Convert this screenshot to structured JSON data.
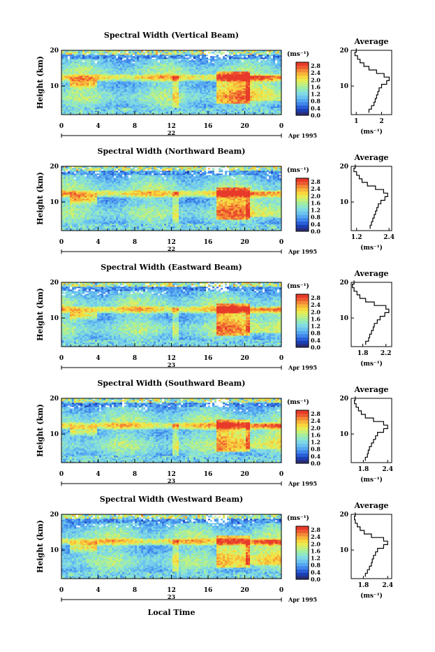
{
  "figure": {
    "bottom_label": "Local Time",
    "date_text": "Apr 1995",
    "day_labels": [
      "22",
      "22",
      "23",
      "23",
      "23"
    ]
  },
  "colors": {
    "scale": [
      "#2a2e7a",
      "#1b3fb0",
      "#2a5fd8",
      "#3f86ea",
      "#55a8f0",
      "#6cc4ee",
      "#7fd8e6",
      "#8fe6c8",
      "#a6ee9e",
      "#c6f07a",
      "#e6ec56",
      "#f8d83e",
      "#f8b43a",
      "#f38a36",
      "#ee5a30",
      "#e73a2a"
    ]
  },
  "chart_data": [
    {
      "type": "heatmap",
      "title": "Spectral Width (Vertical Beam)",
      "ylabel": "Height (km)",
      "x_ticks": [
        "0",
        "4",
        "8",
        "12",
        "16",
        "20",
        "0"
      ],
      "y_ticks": [
        "20",
        "10"
      ],
      "xlim": [
        0,
        24
      ],
      "ylim": [
        2,
        20
      ],
      "colorbar": {
        "unit": "(ms⁻¹)",
        "ticks": [
          "2.8",
          "2.4",
          "2.0",
          "1.6",
          "1.2",
          "0.8",
          "0.4",
          "0.0"
        ],
        "range": [
          0,
          3.0
        ]
      },
      "average": {
        "title": "Average",
        "xlabel": "(ms⁻¹)",
        "x_ticks": [
          "1",
          "2"
        ],
        "xlim": [
          0.8,
          2.4
        ],
        "y_ticks": [
          "20",
          "10"
        ],
        "heights": [
          3,
          4,
          5,
          6,
          7,
          8,
          9,
          10,
          11,
          12,
          13,
          14,
          15,
          16,
          17,
          18,
          19,
          20
        ],
        "values": [
          1.5,
          1.6,
          1.7,
          1.75,
          1.8,
          1.85,
          1.9,
          2.0,
          2.2,
          2.3,
          2.1,
          1.8,
          1.5,
          1.3,
          1.15,
          1.05,
          0.95,
          1.0
        ]
      }
    },
    {
      "type": "heatmap",
      "title": "Spectral Width (Northward Beam)",
      "ylabel": "Height (km)",
      "x_ticks": [
        "0",
        "4",
        "8",
        "12",
        "16",
        "20",
        "0"
      ],
      "y_ticks": [
        "20",
        "10"
      ],
      "xlim": [
        0,
        24
      ],
      "ylim": [
        2,
        20
      ],
      "colorbar": {
        "unit": "(ms⁻¹)",
        "ticks": [
          "2.8",
          "2.4",
          "2.0",
          "1.6",
          "1.2",
          "0.8",
          "0.4",
          "0.0"
        ],
        "range": [
          0,
          3.0
        ]
      },
      "average": {
        "title": "Average",
        "xlabel": "(ms⁻¹)",
        "x_ticks": [
          "1.2",
          "2.4"
        ],
        "xlim": [
          1.0,
          2.5
        ],
        "y_ticks": [
          "20",
          "10"
        ],
        "heights": [
          3,
          4,
          5,
          6,
          7,
          8,
          9,
          10,
          11,
          12,
          13,
          14,
          15,
          16,
          17,
          18,
          19,
          20
        ],
        "values": [
          1.7,
          1.75,
          1.8,
          1.85,
          1.9,
          1.95,
          2.0,
          2.1,
          2.25,
          2.35,
          2.2,
          1.9,
          1.6,
          1.4,
          1.3,
          1.2,
          1.1,
          1.15
        ]
      }
    },
    {
      "type": "heatmap",
      "title": "Spectral Width (Eastward Beam)",
      "ylabel": "Height (km)",
      "x_ticks": [
        "0",
        "4",
        "8",
        "12",
        "16",
        "20",
        "0"
      ],
      "y_ticks": [
        "20",
        "10"
      ],
      "xlim": [
        0,
        24
      ],
      "ylim": [
        2,
        20
      ],
      "colorbar": {
        "unit": "(ms⁻¹)",
        "ticks": [
          "2.8",
          "2.4",
          "2.0",
          "1.6",
          "1.2",
          "0.8",
          "0.4",
          "0.0"
        ],
        "range": [
          0,
          3.0
        ]
      },
      "average": {
        "title": "Average",
        "xlabel": "(ms⁻¹)",
        "x_ticks": [
          "1.8",
          "2.2"
        ],
        "xlim": [
          1.6,
          2.3
        ],
        "y_ticks": [
          "20",
          "10"
        ],
        "heights": [
          3,
          4,
          5,
          6,
          7,
          8,
          9,
          10,
          11,
          12,
          13,
          14,
          15,
          16,
          17,
          18,
          19,
          20
        ],
        "values": [
          1.85,
          1.9,
          1.92,
          1.95,
          1.98,
          2.0,
          2.05,
          2.1,
          2.18,
          2.25,
          2.2,
          2.0,
          1.85,
          1.75,
          1.7,
          1.65,
          1.62,
          1.65
        ]
      }
    },
    {
      "type": "heatmap",
      "title": "Spectral Width (Southward Beam)",
      "ylabel": "Height (km)",
      "x_ticks": [
        "0",
        "4",
        "8",
        "12",
        "16",
        "20",
        "0"
      ],
      "y_ticks": [
        "20",
        "10"
      ],
      "xlim": [
        0,
        24
      ],
      "ylim": [
        2,
        20
      ],
      "colorbar": {
        "unit": "(ms⁻¹)",
        "ticks": [
          "2.8",
          "2.4",
          "2.0",
          "1.6",
          "1.2",
          "0.8",
          "0.4",
          "0.0"
        ],
        "range": [
          0,
          3.0
        ]
      },
      "average": {
        "title": "Average",
        "xlabel": "(ms⁻¹)",
        "x_ticks": [
          "1.8",
          "2.4"
        ],
        "xlim": [
          1.5,
          2.5
        ],
        "y_ticks": [
          "20",
          "10"
        ],
        "heights": [
          3,
          4,
          5,
          6,
          7,
          8,
          9,
          10,
          11,
          12,
          13,
          14,
          15,
          16,
          17,
          18,
          19,
          20
        ],
        "values": [
          1.85,
          1.9,
          1.92,
          1.95,
          2.0,
          2.05,
          2.1,
          2.15,
          2.3,
          2.4,
          2.3,
          2.05,
          1.85,
          1.75,
          1.68,
          1.62,
          1.58,
          1.6
        ]
      }
    },
    {
      "type": "heatmap",
      "title": "Spectral Width (Westward Beam)",
      "ylabel": "Height (km)",
      "x_ticks": [
        "0",
        "4",
        "8",
        "12",
        "16",
        "20",
        "0"
      ],
      "y_ticks": [
        "20",
        "10"
      ],
      "xlim": [
        0,
        24
      ],
      "ylim": [
        2,
        20
      ],
      "colorbar": {
        "unit": "(ms⁻¹)",
        "ticks": [
          "2.8",
          "2.4",
          "2.0",
          "1.6",
          "1.2",
          "0.8",
          "0.4",
          "0.0"
        ],
        "range": [
          0,
          3.0
        ]
      },
      "average": {
        "title": "Average",
        "xlabel": "(ms⁻¹)",
        "x_ticks": [
          "1.8",
          "2.4"
        ],
        "xlim": [
          1.5,
          2.5
        ],
        "y_ticks": [
          "20",
          "10"
        ],
        "heights": [
          3,
          4,
          5,
          6,
          7,
          8,
          9,
          10,
          11,
          12,
          13,
          14,
          15,
          16,
          17,
          18,
          19,
          20
        ],
        "values": [
          1.85,
          1.9,
          1.95,
          2.0,
          2.02,
          2.05,
          2.1,
          2.15,
          2.3,
          2.4,
          2.3,
          2.0,
          1.82,
          1.72,
          1.65,
          1.6,
          1.58,
          1.6
        ]
      }
    }
  ]
}
